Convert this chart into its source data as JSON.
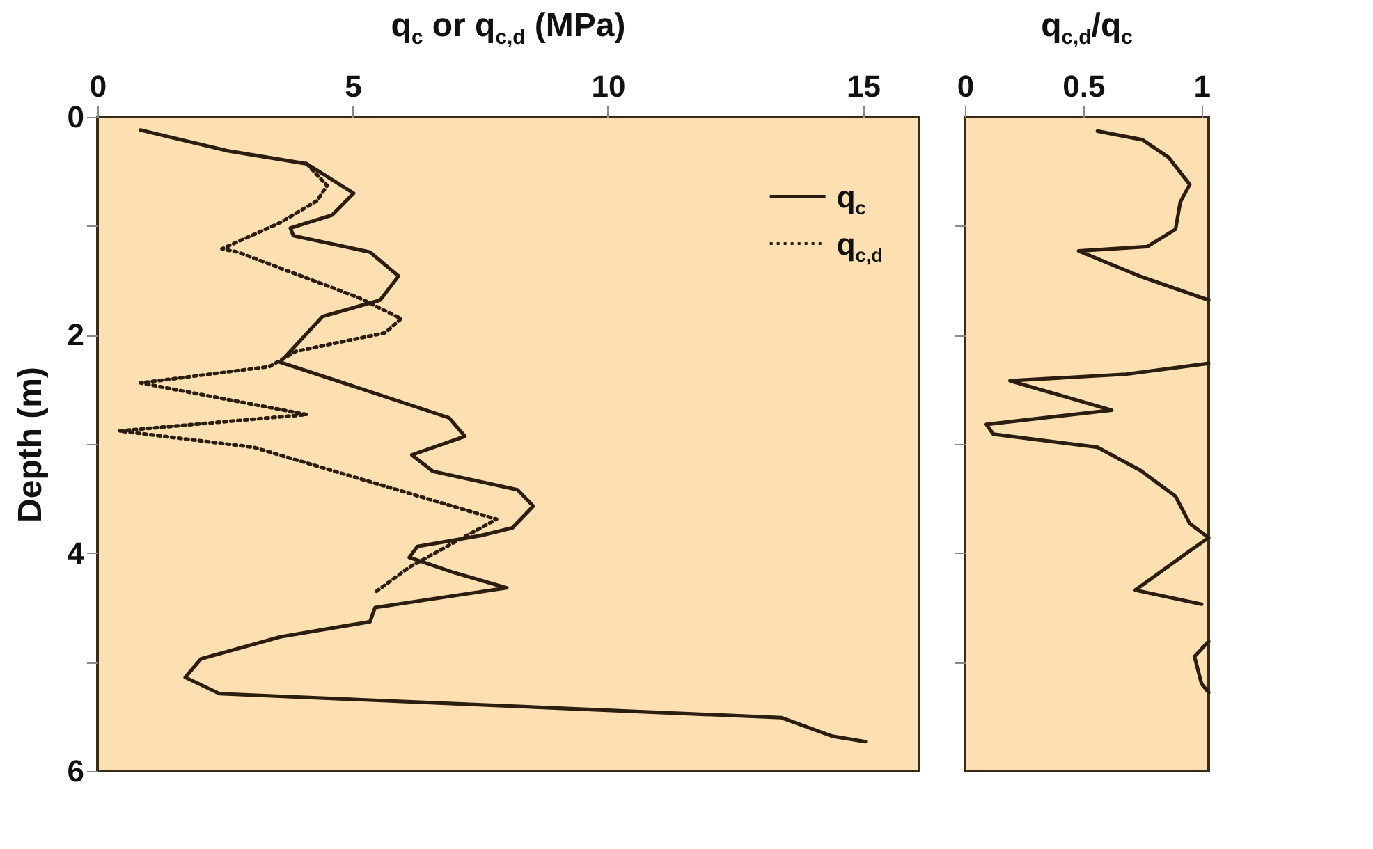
{
  "chart_data": [
    {
      "type": "line",
      "xlabel": "q$_{c}$ or q$_{c,d}$ (MPa)",
      "ylabel": "Depth (m)",
      "xlim": [
        0,
        16.1
      ],
      "xticks": [
        0,
        5,
        10,
        15
      ],
      "ylim": [
        6,
        0
      ],
      "yticks": [
        0,
        {
          "value": 1,
          "label": null
        },
        2,
        {
          "value": 3,
          "label": null
        },
        4,
        {
          "value": 5,
          "label": null
        },
        6
      ],
      "legend": "top right",
      "series": [
        {
          "name": "q$_{c}$",
          "color": "#2b1d10",
          "line_style": "solid",
          "x": [
            0.84,
            2.54,
            4.1,
            5.02,
            4.6,
            3.78,
            3.84,
            5.34,
            5.9,
            5.54,
            4.41,
            3.58,
            4.82,
            6.89,
            7.2,
            6.16,
            6.57,
            8.23,
            8.54,
            8.13,
            7.51,
            6.27,
            6.11,
            6.99,
            8.02,
            5.44,
            5.34,
            3.58,
            2.03,
            1.72,
            2.39,
            13.4,
            14.4,
            15.05
          ],
          "values": [
            0.12,
            0.31,
            0.43,
            0.7,
            0.9,
            1.02,
            1.09,
            1.24,
            1.46,
            1.68,
            1.83,
            2.25,
            2.44,
            2.76,
            2.93,
            3.1,
            3.25,
            3.42,
            3.57,
            3.77,
            3.84,
            3.94,
            4.04,
            4.18,
            4.32,
            4.5,
            4.63,
            4.77,
            4.97,
            5.14,
            5.29,
            5.51,
            5.68,
            5.73
          ]
        },
        {
          "name": "q$_{c,d}$",
          "color": "#2b1d10",
          "line_style": "dotted",
          "x": [
            4.1,
            4.5,
            4.3,
            3.58,
            2.44,
            2.75,
            5.13,
            5.95,
            5.64,
            3.89,
            3.37,
            0.84,
            4.1,
            0.43,
            3.06,
            7.82,
            6.11,
            5.44
          ],
          "values": [
            0.43,
            0.63,
            0.77,
            0.97,
            1.21,
            1.24,
            1.66,
            1.85,
            1.98,
            2.15,
            2.29,
            2.44,
            2.73,
            2.88,
            3.03,
            3.69,
            4.13,
            4.36
          ]
        }
      ]
    },
    {
      "type": "line",
      "xlabel": "q$_{c,d}$/q$_{c}$",
      "xlim": [
        0,
        1.03
      ],
      "xticks": [
        0,
        0.5,
        1
      ],
      "ylim": [
        6,
        0
      ],
      "yticks": [
        {
          "value": 1,
          "label": null
        },
        {
          "value": 2,
          "label": null
        },
        {
          "value": 3,
          "label": null
        },
        {
          "value": 4,
          "label": null
        },
        {
          "value": 5,
          "label": null
        }
      ],
      "tick_labels": "x",
      "series": [
        {
          "color": "#2b1d10",
          "line_style": "solid",
          "x": [
            0.56,
            0.75,
            0.86,
            0.95,
            0.91,
            0.89,
            0.77,
            0.48,
            0.75,
            1.03,
            null,
            1.03,
            0.68,
            0.19,
            0.62,
            0.09,
            0.12,
            0.56,
            0.74,
            0.89,
            0.95,
            1.03,
            0.95,
            0.72,
            1.0,
            null,
            1.03,
            0.97,
            1.0,
            1.03
          ],
          "values": [
            0.13,
            0.21,
            0.37,
            0.62,
            0.78,
            1.03,
            1.19,
            1.23,
            1.47,
            1.68,
            null,
            2.26,
            2.36,
            2.42,
            2.69,
            2.82,
            2.91,
            3.03,
            3.24,
            3.48,
            3.73,
            3.86,
            3.98,
            4.34,
            4.47,
            null,
            4.81,
            4.95,
            5.2,
            5.28
          ]
        }
      ]
    }
  ]
}
